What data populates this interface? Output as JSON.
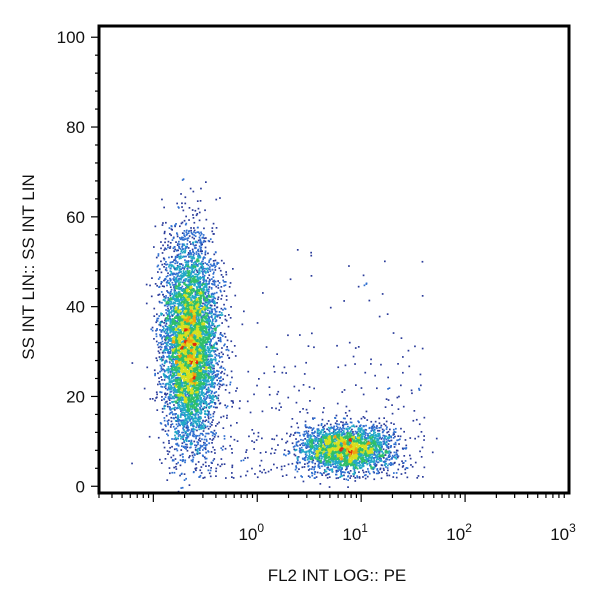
{
  "chart_data": {
    "type": "scatter",
    "subtype": "flow-cytometry-density-plot",
    "xlabel": "FL2 INT LOG:: PE",
    "ylabel": "SS INT LIN:: SS INT LIN",
    "x_scale": "log",
    "xlim": [
      0.03,
      1000
    ],
    "x_ticks": [
      {
        "value": 1,
        "base": "10",
        "exp": "0"
      },
      {
        "value": 10,
        "base": "10",
        "exp": "1"
      },
      {
        "value": 100,
        "base": "10",
        "exp": "2"
      },
      {
        "value": 1000,
        "base": "10",
        "exp": "3"
      }
    ],
    "y_scale": "linear",
    "ylim": [
      -1.5,
      102.5
    ],
    "y_ticks": [
      0,
      20,
      40,
      60,
      80,
      100
    ],
    "grid": false,
    "color_scale": [
      "#2a3b9a",
      "#2f6fd0",
      "#22a8c8",
      "#2fbf6a",
      "#d8e020",
      "#f2a010",
      "#e02a10"
    ],
    "populations": [
      {
        "center_x": 0.22,
        "center_y": 32,
        "spread_log_x": 0.13,
        "spread_y": 11,
        "count": 6500
      },
      {
        "center_x": 7.0,
        "center_y": 8.5,
        "spread_log_x": 0.22,
        "spread_y": 2.6,
        "count": 2600
      }
    ]
  }
}
